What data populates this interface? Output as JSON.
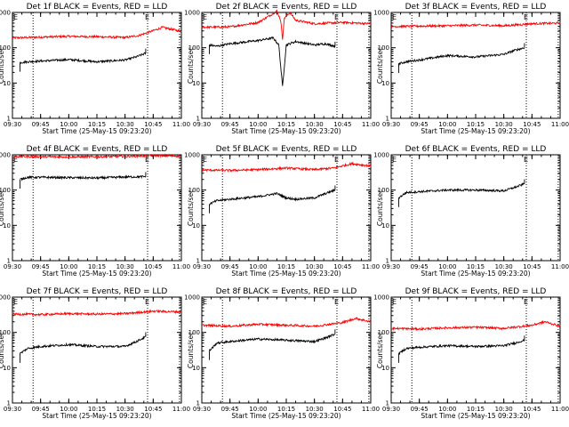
{
  "figure": {
    "x_ticks": [
      "09:30",
      "09:45",
      "10:00",
      "10:15",
      "10:30",
      "10:45",
      "11:00"
    ],
    "y_ticks": [
      "1",
      "10",
      "100",
      "1000"
    ],
    "ylabel": "Counts/sec",
    "xlabel": "Start Time (25-May-15 09:23:20)",
    "marker_label": "E",
    "colors": {
      "events": "#000000",
      "lld": "#ff0000"
    }
  },
  "chart_data": [
    {
      "type": "line",
      "title": "Det 1f BLACK = Events, RED = LLD",
      "xlabel": "Start Time (25-May-15 09:23:20)",
      "ylabel": "Counts/sec",
      "ylim": [
        1,
        1000
      ],
      "log_y": true,
      "x_start": "09:30",
      "x_end": "11:00",
      "series": [
        {
          "color": "red",
          "x_start": "09:30",
          "x_end": "11:00",
          "x": [
            "09:30",
            "09:45",
            "10:00",
            "10:15",
            "10:30",
            "10:37",
            "10:44",
            "10:50",
            "10:55",
            "11:00"
          ],
          "values": [
            190,
            200,
            210,
            205,
            195,
            220,
            290,
            380,
            330,
            290
          ]
        },
        {
          "color": "black",
          "x_start": "09:34",
          "x_end": "10:41",
          "x": [
            "09:34",
            "09:38",
            "09:45",
            "10:00",
            "10:15",
            "10:30",
            "10:36",
            "10:41"
          ],
          "values": [
            38,
            40,
            42,
            46,
            40,
            45,
            55,
            70
          ]
        }
      ],
      "markers": [
        "09:41",
        "10:42",
        "10:59"
      ]
    },
    {
      "type": "line",
      "title": "Det 2f BLACK = Events, RED = LLD",
      "xlabel": "Start Time (25-May-15 09:23:20)",
      "ylabel": "Counts/sec",
      "ylim": [
        1,
        1000
      ],
      "log_y": true,
      "x_start": "09:30",
      "x_end": "11:00",
      "series": [
        {
          "color": "red",
          "x_start": "09:30",
          "x_end": "11:00",
          "x": [
            "09:30",
            "09:45",
            "10:00",
            "10:06",
            "10:10",
            "10:12",
            "10:13",
            "10:14",
            "10:17",
            "10:20",
            "10:30",
            "10:45",
            "11:00"
          ],
          "values": [
            380,
            390,
            520,
            800,
            1100,
            600,
            180,
            700,
            1000,
            600,
            480,
            520,
            480
          ]
        },
        {
          "color": "black",
          "x_start": "09:34",
          "x_end": "10:41",
          "x": [
            "09:34",
            "09:38",
            "09:45",
            "10:00",
            "10:08",
            "10:11",
            "10:13",
            "10:15",
            "10:20",
            "10:30",
            "10:36",
            "10:41"
          ],
          "values": [
            120,
            110,
            130,
            160,
            190,
            120,
            8,
            120,
            150,
            120,
            130,
            110
          ]
        }
      ],
      "markers": [
        "09:41",
        "10:42",
        "10:59"
      ]
    },
    {
      "type": "line",
      "title": "Det 3f BLACK = Events, RED = LLD",
      "xlabel": "Start Time (25-May-15 09:23:20)",
      "ylabel": "Counts/sec",
      "ylim": [
        1,
        1000
      ],
      "log_y": true,
      "x_start": "09:30",
      "x_end": "11:00",
      "series": [
        {
          "color": "red",
          "x_start": "09:30",
          "x_end": "11:00",
          "x": [
            "09:30",
            "09:45",
            "10:00",
            "10:15",
            "10:30",
            "10:45",
            "11:00"
          ],
          "values": [
            400,
            410,
            420,
            440,
            420,
            480,
            500
          ]
        },
        {
          "color": "black",
          "x_start": "09:34",
          "x_end": "10:41",
          "x": [
            "09:34",
            "09:38",
            "09:45",
            "10:00",
            "10:15",
            "10:30",
            "10:36",
            "10:41"
          ],
          "values": [
            35,
            40,
            45,
            60,
            55,
            65,
            85,
            100
          ]
        }
      ],
      "markers": [
        "09:41",
        "10:42",
        "10:59"
      ]
    },
    {
      "type": "line",
      "title": "Det 4f BLACK = Events, RED = LLD",
      "xlabel": "Start Time (25-May-15 09:23:20)",
      "ylabel": "Counts/sec",
      "ylim": [
        1,
        1000
      ],
      "log_y": true,
      "x_start": "09:30",
      "x_end": "11:00",
      "series": [
        {
          "color": "red",
          "x_start": "09:30",
          "x_end": "11:00",
          "x": [
            "09:30",
            "09:45",
            "10:00",
            "10:15",
            "10:30",
            "10:45",
            "11:00"
          ],
          "values": [
            900,
            880,
            870,
            880,
            900,
            950,
            920
          ]
        },
        {
          "color": "black",
          "x_start": "09:34",
          "x_end": "10:41",
          "x": [
            "09:34",
            "09:38",
            "09:45",
            "10:00",
            "10:15",
            "10:30",
            "10:41"
          ],
          "values": [
            200,
            230,
            230,
            225,
            220,
            235,
            240
          ]
        }
      ],
      "markers": [
        "09:41",
        "10:42",
        "10:59"
      ]
    },
    {
      "type": "line",
      "title": "Det 5f BLACK = Events, RED = LLD",
      "xlabel": "Start Time (25-May-15 09:23:20)",
      "ylabel": "Counts/sec",
      "ylim": [
        1,
        1000
      ],
      "log_y": true,
      "x_start": "09:30",
      "x_end": "11:00",
      "series": [
        {
          "color": "red",
          "x_start": "09:30",
          "x_end": "11:00",
          "x": [
            "09:30",
            "09:45",
            "10:00",
            "10:15",
            "10:30",
            "10:40",
            "10:50",
            "11:00"
          ],
          "values": [
            370,
            360,
            380,
            420,
            380,
            420,
            560,
            480
          ]
        },
        {
          "color": "black",
          "x_start": "09:34",
          "x_end": "10:41",
          "x": [
            "09:34",
            "09:38",
            "09:45",
            "10:00",
            "10:10",
            "10:15",
            "10:20",
            "10:30",
            "10:36",
            "10:41"
          ],
          "values": [
            40,
            50,
            55,
            65,
            80,
            60,
            55,
            60,
            80,
            100
          ]
        }
      ],
      "markers": [
        "09:41",
        "10:42",
        "10:59"
      ]
    },
    {
      "type": "line",
      "title": "Det 6f BLACK = Events, RED = LLD",
      "xlabel": "Start Time (25-May-15 09:23:20)",
      "ylabel": "Counts/sec",
      "ylim": [
        1,
        1000
      ],
      "log_y": true,
      "x_start": "09:30",
      "x_end": "11:00",
      "series": [
        {
          "color": "black",
          "x_start": "09:34",
          "x_end": "10:41",
          "x": [
            "09:34",
            "09:38",
            "09:45",
            "10:00",
            "10:15",
            "10:30",
            "10:36",
            "10:41"
          ],
          "values": [
            60,
            85,
            90,
            100,
            100,
            95,
            120,
            150
          ]
        }
      ],
      "markers": [
        "09:41",
        "10:42",
        "10:59"
      ]
    },
    {
      "type": "line",
      "title": "Det 7f BLACK = Events, RED = LLD",
      "xlabel": "Start Time (25-May-15 09:23:20)",
      "ylabel": "Counts/sec",
      "ylim": [
        1,
        1000
      ],
      "log_y": true,
      "x_start": "09:30",
      "x_end": "11:00",
      "series": [
        {
          "color": "red",
          "x_start": "09:30",
          "x_end": "11:00",
          "x": [
            "09:30",
            "09:45",
            "10:00",
            "10:15",
            "10:30",
            "10:45",
            "11:00"
          ],
          "values": [
            330,
            320,
            340,
            330,
            340,
            400,
            380
          ]
        },
        {
          "color": "black",
          "x_start": "09:34",
          "x_end": "10:41",
          "x": [
            "09:34",
            "09:38",
            "09:45",
            "10:00",
            "10:15",
            "10:30",
            "10:36",
            "10:41"
          ],
          "values": [
            25,
            35,
            40,
            45,
            40,
            40,
            55,
            75
          ]
        }
      ],
      "markers": [
        "09:41",
        "10:42",
        "10:59"
      ]
    },
    {
      "type": "line",
      "title": "Det 8f BLACK = Events, RED = LLD",
      "xlabel": "Start Time (25-May-15 09:23:20)",
      "ylabel": "Counts/sec",
      "ylim": [
        1,
        1000
      ],
      "log_y": true,
      "x_start": "09:30",
      "x_end": "11:00",
      "series": [
        {
          "color": "red",
          "x_start": "09:30",
          "x_end": "11:00",
          "x": [
            "09:30",
            "09:45",
            "10:00",
            "10:15",
            "10:30",
            "10:45",
            "10:52",
            "11:00"
          ],
          "values": [
            160,
            150,
            170,
            160,
            150,
            190,
            250,
            200
          ]
        },
        {
          "color": "black",
          "x_start": "09:34",
          "x_end": "10:41",
          "x": [
            "09:34",
            "09:38",
            "09:45",
            "10:00",
            "10:15",
            "10:30",
            "10:36",
            "10:41"
          ],
          "values": [
            30,
            50,
            55,
            65,
            60,
            55,
            70,
            90
          ]
        }
      ],
      "markers": [
        "09:41",
        "10:42",
        "10:59"
      ]
    },
    {
      "type": "line",
      "title": "Det 9f BLACK = Events, RED = LLD",
      "xlabel": "Start Time (25-May-15 09:23:20)",
      "ylabel": "Counts/sec",
      "ylim": [
        1,
        1000
      ],
      "log_y": true,
      "x_start": "09:30",
      "x_end": "11:00",
      "series": [
        {
          "color": "red",
          "x_start": "09:30",
          "x_end": "11:00",
          "x": [
            "09:30",
            "09:45",
            "10:00",
            "10:15",
            "10:30",
            "10:45",
            "10:52",
            "11:00"
          ],
          "values": [
            130,
            125,
            135,
            140,
            130,
            160,
            200,
            150
          ]
        },
        {
          "color": "black",
          "x_start": "09:34",
          "x_end": "10:41",
          "x": [
            "09:34",
            "09:38",
            "09:45",
            "10:00",
            "10:15",
            "10:30",
            "10:36",
            "10:41"
          ],
          "values": [
            25,
            35,
            38,
            42,
            40,
            42,
            50,
            60
          ]
        }
      ],
      "markers": [
        "09:41",
        "10:42",
        "10:59"
      ]
    }
  ]
}
